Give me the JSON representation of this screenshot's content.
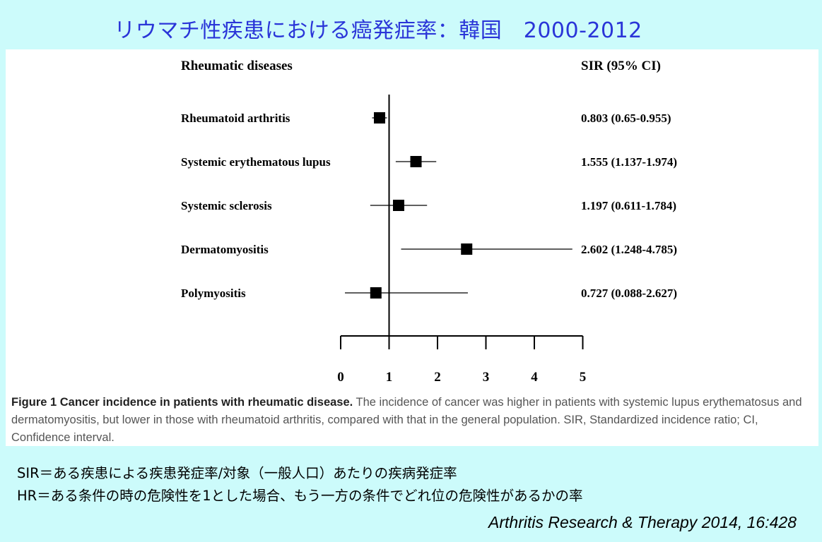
{
  "slide_title": "リウマチ性疾患における癌発症率：韓国　2000-2012",
  "figure": {
    "caption_lead": "Figure 1 Cancer incidence in patients with rheumatic disease.",
    "caption_body": " The incidence of cancer was higher in patients with systemic lupus erythematosus and dermatomyositis, but lower in those with rheumatoid arthritis, compared with that in the general population. SIR, Standardized incidence ratio; CI, Confidence interval."
  },
  "notes": {
    "sir": "SIR＝ある疾患による疾患発症率/対象（一般人口）あたりの疾病発症率",
    "hr": "HR＝ある条件の時の危険性を1とした場合、もう一方の条件でどれ位の危険性があるかの率"
  },
  "citation": "Arthritis Research & Therapy 2014, 16:428",
  "chart_data": {
    "type": "forest",
    "column_left_header": "Rheumatic diseases",
    "column_right_header": "SIR (95% CI)",
    "reference_line": 1,
    "xlim": [
      0,
      5
    ],
    "x_ticks": [
      "0",
      "1",
      "2",
      "3",
      "4",
      "5"
    ],
    "rows": [
      {
        "label": "Rheumatoid arthritis",
        "estimate": 0.803,
        "ci_low": 0.65,
        "ci_high": 0.955,
        "text": "0.803 (0.65-0.955)"
      },
      {
        "label": "Systemic erythematous lupus",
        "estimate": 1.555,
        "ci_low": 1.137,
        "ci_high": 1.974,
        "text": "1.555 (1.137-1.974)"
      },
      {
        "label": "Systemic sclerosis",
        "estimate": 1.197,
        "ci_low": 0.611,
        "ci_high": 1.784,
        "text": "1.197 (0.611-1.784)"
      },
      {
        "label": "Dermatomyositis",
        "estimate": 2.602,
        "ci_low": 1.248,
        "ci_high": 4.785,
        "text": "2.602 (1.248-4.785)"
      },
      {
        "label": "Polymyositis",
        "estimate": 0.727,
        "ci_low": 0.088,
        "ci_high": 2.627,
        "text": "0.727 (0.088-2.627)"
      }
    ]
  }
}
